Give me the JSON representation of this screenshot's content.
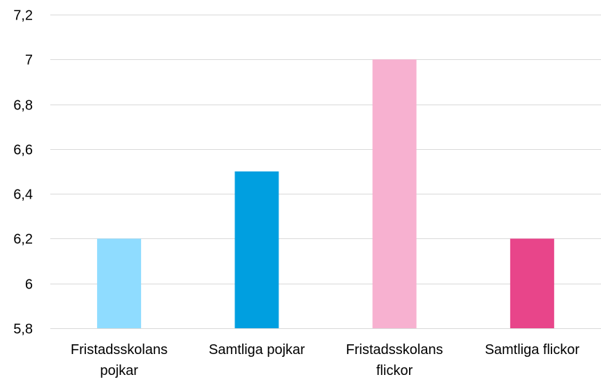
{
  "chart_data": {
    "type": "bar",
    "title": "",
    "xlabel": "",
    "ylabel": "",
    "categories": [
      [
        "Fristadsskolans",
        "pojkar"
      ],
      [
        "Samtliga pojkar"
      ],
      [
        "Fristadsskolans",
        "flickor"
      ],
      [
        "Samtliga flickor"
      ]
    ],
    "values": [
      6.2,
      6.5,
      7.0,
      6.2
    ],
    "colors": [
      "#8fdcff",
      "#009fe0",
      "#f7b1d0",
      "#e8458a"
    ],
    "ylim": [
      5.8,
      7.2
    ],
    "yticks": [
      {
        "value": 5.8,
        "label": "5,8"
      },
      {
        "value": 6.0,
        "label": "6"
      },
      {
        "value": 6.2,
        "label": "6,2"
      },
      {
        "value": 6.4,
        "label": "6,4"
      },
      {
        "value": 6.6,
        "label": "6,6"
      },
      {
        "value": 6.8,
        "label": "6,8"
      },
      {
        "value": 7.0,
        "label": "7"
      },
      {
        "value": 7.2,
        "label": "7,2"
      }
    ],
    "grid": true,
    "legend": "none"
  }
}
